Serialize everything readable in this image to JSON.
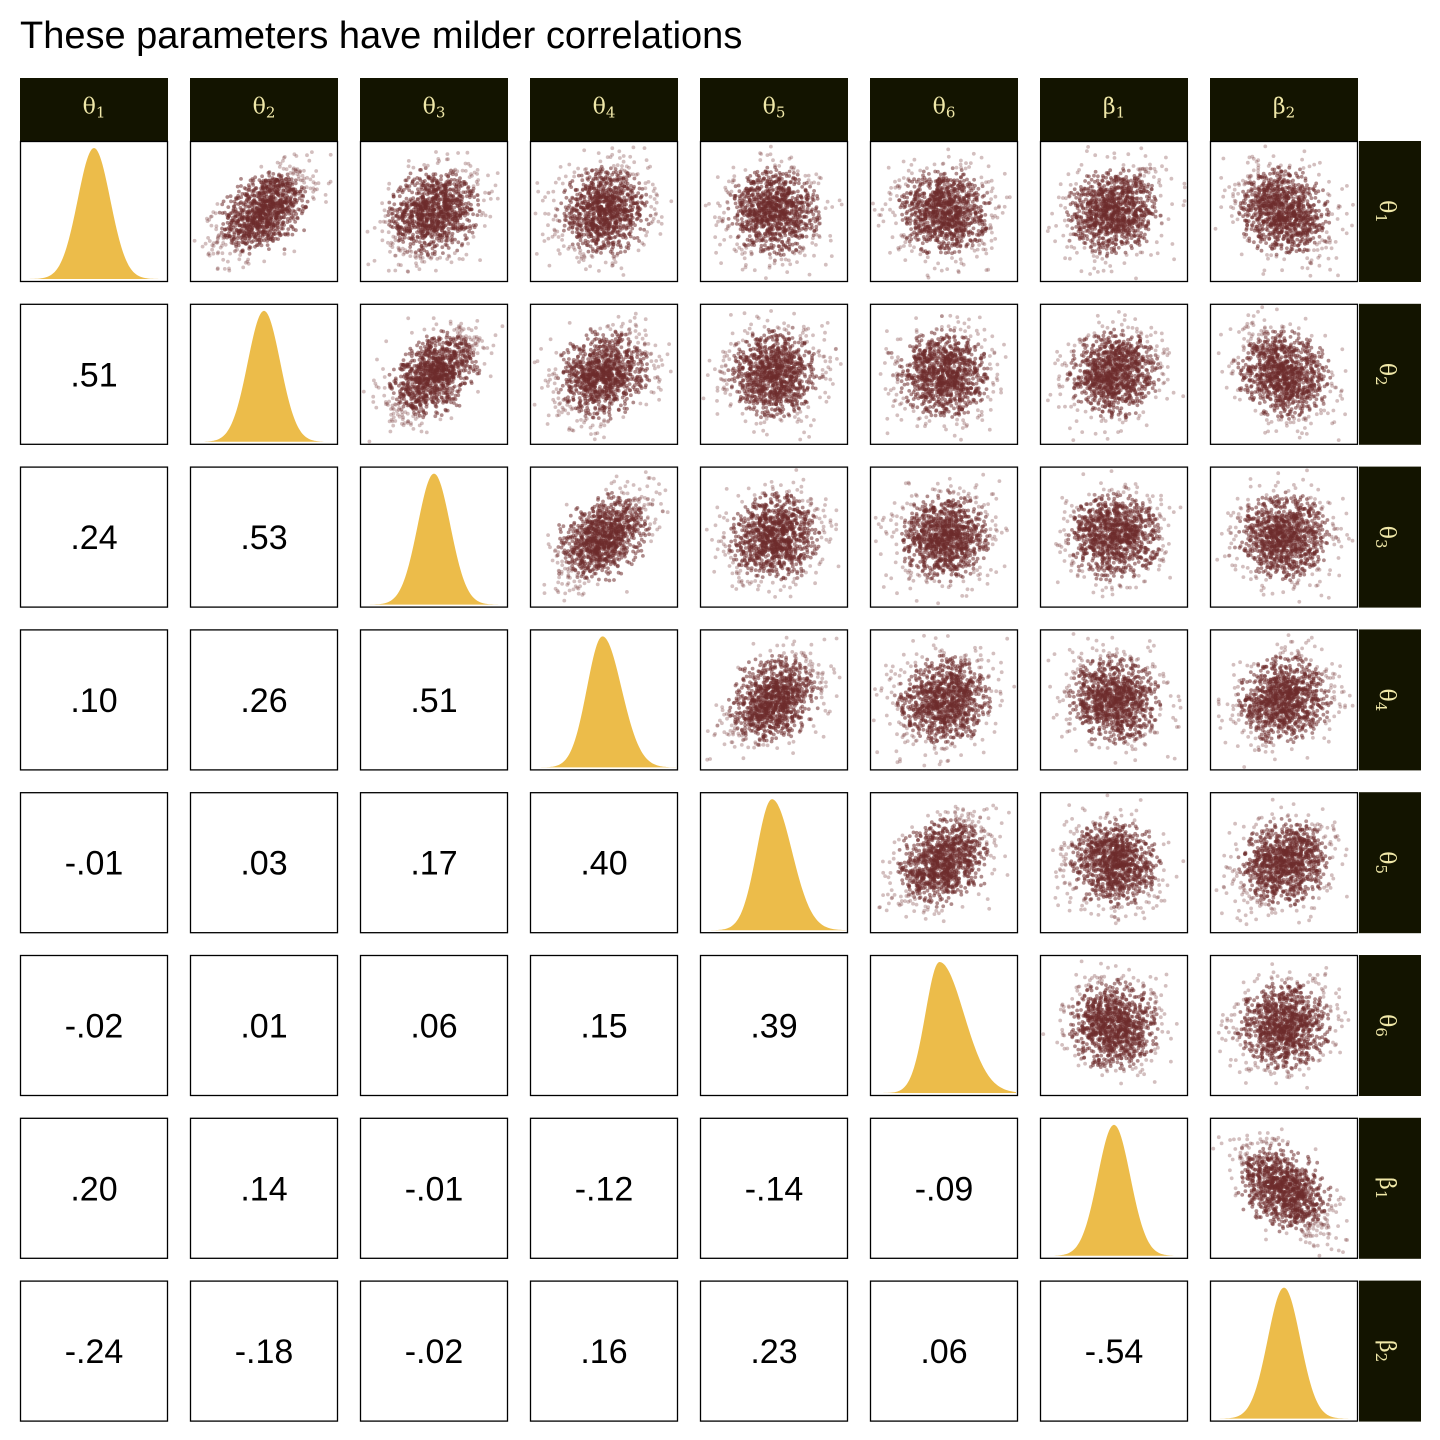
{
  "chart_data": {
    "type": "scatter",
    "title": "These parameters have milder correlations",
    "params": [
      "θ1",
      "θ2",
      "θ3",
      "θ4",
      "θ5",
      "θ6",
      "β1",
      "β2"
    ],
    "param_labels": [
      {
        "base": "θ",
        "sub": "1"
      },
      {
        "base": "θ",
        "sub": "2"
      },
      {
        "base": "θ",
        "sub": "3"
      },
      {
        "base": "θ",
        "sub": "4"
      },
      {
        "base": "θ",
        "sub": "5"
      },
      {
        "base": "θ",
        "sub": "6"
      },
      {
        "base": "β",
        "sub": "1"
      },
      {
        "base": "β",
        "sub": "2"
      }
    ],
    "lower_panels": "correlation coefficient text",
    "diagonal_panels": "marginal density",
    "upper_panels": "pairwise scatter of posterior draws",
    "correlations": [
      [
        "",
        "",
        "",
        "",
        "",
        "",
        "",
        ""
      ],
      [
        ".51",
        "",
        "",
        "",
        "",
        "",
        "",
        ""
      ],
      [
        ".24",
        ".53",
        "",
        "",
        "",
        "",
        "",
        ""
      ],
      [
        ".10",
        ".26",
        ".51",
        "",
        "",
        "",
        "",
        ""
      ],
      [
        "-.01",
        ".03",
        ".17",
        ".40",
        "",
        "",
        "",
        ""
      ],
      [
        "-.02",
        ".01",
        ".06",
        ".15",
        ".39",
        "",
        "",
        ""
      ],
      [
        ".20",
        ".14",
        "-.01",
        "-.12",
        "-.14",
        "-.09",
        "",
        ""
      ],
      [
        "-.24",
        "-.18",
        "-.02",
        ".16",
        ".23",
        ".06",
        "-.54",
        ""
      ]
    ],
    "correlation_values": [
      [
        1,
        0.51,
        0.24,
        0.1,
        -0.01,
        -0.02,
        0.2,
        -0.24
      ],
      [
        0.51,
        1,
        0.53,
        0.26,
        0.03,
        0.01,
        0.14,
        -0.18
      ],
      [
        0.24,
        0.53,
        1,
        0.51,
        0.17,
        0.06,
        -0.01,
        -0.02
      ],
      [
        0.1,
        0.26,
        0.51,
        1,
        0.4,
        0.15,
        -0.12,
        0.16
      ],
      [
        -0.01,
        0.03,
        0.17,
        0.4,
        1,
        0.39,
        -0.14,
        0.23
      ],
      [
        -0.02,
        0.01,
        0.06,
        0.15,
        0.39,
        1,
        -0.09,
        0.06
      ],
      [
        0.2,
        0.14,
        -0.01,
        -0.12,
        -0.14,
        -0.09,
        1,
        -0.54
      ],
      [
        -0.24,
        -0.18,
        -0.02,
        0.16,
        0.23,
        0.06,
        -0.54,
        1
      ]
    ],
    "density_skew": [
      0,
      0,
      0,
      0.15,
      0.2,
      0.45,
      0,
      0
    ],
    "grid": false,
    "axes_ticks": false
  },
  "colors": {
    "strip_bg": "#131400",
    "strip_text": "#f0e8a8",
    "scatter_point": "#6e2b2b",
    "density_fill": "#ecbc4a",
    "panel_border": "#000000"
  }
}
